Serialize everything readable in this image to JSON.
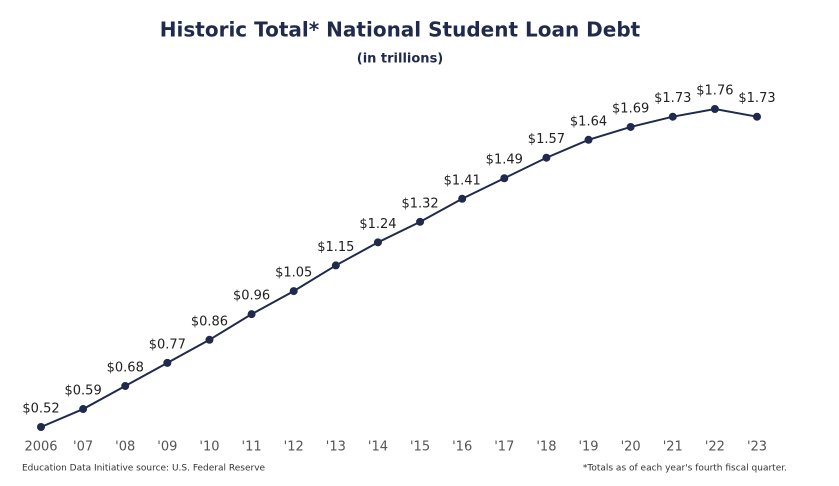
{
  "chart_data": {
    "type": "line",
    "title": "Historic Total* National Student Loan Debt",
    "subtitle": "(in trillions)",
    "source": "Education Data Initiative source: U.S. Federal Reserve",
    "footnote": "*Totals as of each year's fourth fiscal quarter.",
    "categories": [
      "2006",
      "'07",
      "'08",
      "'09",
      "'10",
      "'11",
      "'12",
      "'13",
      "'14",
      "'15",
      "'16",
      "'17",
      "'18",
      "'19",
      "'20",
      "'21",
      "'22",
      "'23"
    ],
    "values": [
      0.52,
      0.59,
      0.68,
      0.77,
      0.86,
      0.96,
      1.05,
      1.15,
      1.24,
      1.32,
      1.41,
      1.49,
      1.57,
      1.64,
      1.69,
      1.73,
      1.76,
      1.73
    ],
    "value_labels": [
      "$0.52",
      "$0.59",
      "$0.68",
      "$0.77",
      "$0.86",
      "$0.96",
      "$1.05",
      "$1.15",
      "$1.24",
      "$1.32",
      "$1.41",
      "$1.49",
      "$1.57",
      "$1.64",
      "$1.69",
      "$1.73",
      "$1.76",
      "$1.73"
    ],
    "color": "#1f2a4d"
  }
}
